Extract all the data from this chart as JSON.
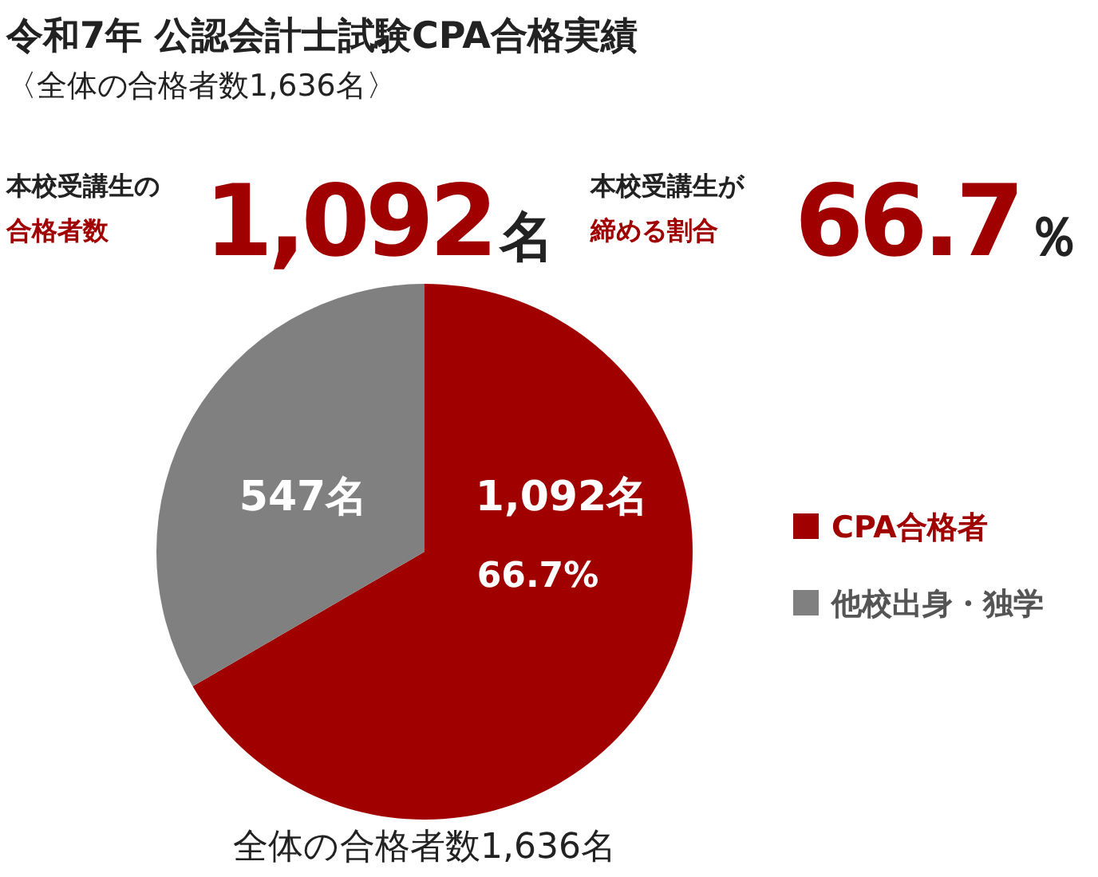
{
  "chart_data": {
    "type": "pie",
    "title": "令和7年 公認会計士試験CPA合格実績",
    "subtitle": "〈全体の合格者数1,636名〉",
    "categories": [
      "CPA合格者",
      "他校出身・独学"
    ],
    "values": [
      1092,
      547
    ],
    "colors": [
      "#a00000",
      "#808080"
    ],
    "value_labels": [
      "1,092名",
      "547名"
    ],
    "legend": "right",
    "annotations": [
      "本校受講生の",
      "合格者数",
      "1,092名",
      "本校受講生が",
      "締める割合",
      "66.7％",
      "66.7%",
      "全体の合格者数1,636名"
    ]
  }
}
